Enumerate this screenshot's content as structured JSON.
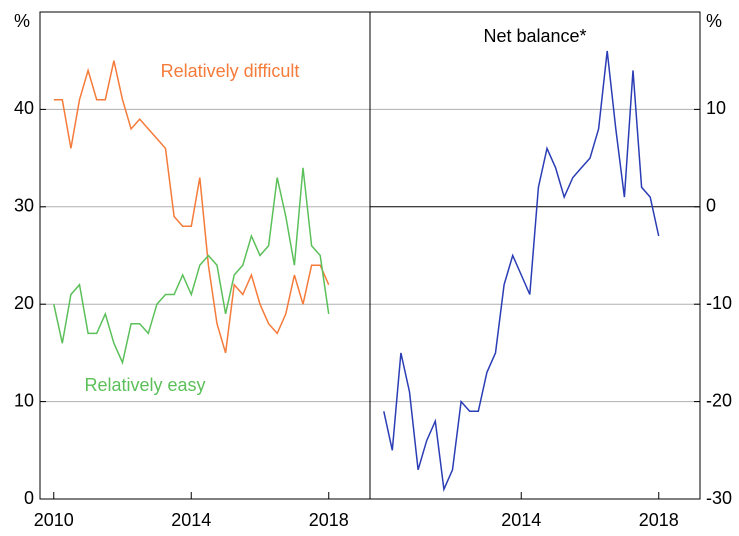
{
  "chart_data": [
    {
      "type": "line",
      "unit": "%",
      "yaxis": "left",
      "x": [
        2010,
        2010.25,
        2010.5,
        2010.75,
        2011,
        2011.25,
        2011.5,
        2011.75,
        2012,
        2012.25,
        2012.5,
        2012.75,
        2013,
        2013.25,
        2013.5,
        2013.75,
        2014,
        2014.25,
        2014.5,
        2014.75,
        2015,
        2015.25,
        2015.5,
        2015.75,
        2016,
        2016.25,
        2016.5,
        2016.75,
        2017,
        2017.25,
        2017.5,
        2017.75,
        2018
      ],
      "series": [
        {
          "name": "Relatively difficult",
          "color": "#f47b3a",
          "values": [
            41,
            41,
            36,
            41,
            44,
            41,
            41,
            45,
            41,
            38,
            39,
            38,
            37,
            36,
            29,
            28,
            28,
            33,
            24,
            18,
            15,
            22,
            21,
            23,
            20,
            18,
            17,
            19,
            23,
            20,
            24,
            24,
            22
          ]
        },
        {
          "name": "Relatively easy",
          "color": "#5cc05a",
          "values": [
            20,
            16,
            21,
            22,
            17,
            17,
            19,
            16,
            14,
            18,
            18,
            17,
            20,
            21,
            21,
            23,
            21,
            24,
            25,
            24,
            19,
            23,
            24,
            27,
            25,
            26,
            33,
            29,
            24,
            34,
            26,
            25,
            19
          ]
        }
      ],
      "xlim": [
        2009.6,
        2019.2
      ],
      "xticks": [
        2010,
        2014,
        2018
      ],
      "ylim": [
        0,
        50
      ],
      "yticks": [
        0,
        10,
        20,
        30,
        40
      ],
      "grid": true
    },
    {
      "type": "line",
      "unit": "%",
      "yaxis": "right",
      "x": [
        2010,
        2010.25,
        2010.5,
        2010.75,
        2011,
        2011.25,
        2011.5,
        2011.75,
        2012,
        2012.25,
        2012.5,
        2012.75,
        2013,
        2013.25,
        2013.5,
        2013.75,
        2014,
        2014.25,
        2014.5,
        2014.75,
        2015,
        2015.25,
        2015.5,
        2015.75,
        2016,
        2016.25,
        2016.5,
        2016.75,
        2017,
        2017.25,
        2017.5,
        2017.75,
        2018
      ],
      "series": [
        {
          "name": "Net balance*",
          "color": "#2b3db5",
          "values": [
            -21,
            -25,
            -15,
            -19,
            -27,
            -24,
            -22,
            -29,
            -27,
            -20,
            -21,
            -21,
            -17,
            -15,
            -8,
            -5,
            -7,
            -9,
            2,
            6,
            4,
            1,
            3,
            4,
            5,
            8,
            16,
            8,
            1,
            14,
            2,
            1,
            -3
          ]
        }
      ],
      "xlim": [
        2009.6,
        2019.2
      ],
      "xticks": [
        2014,
        2018
      ],
      "ylim": [
        -30,
        20
      ],
      "yticks": [
        -30,
        -20,
        -10,
        0,
        10
      ],
      "grid": true
    }
  ]
}
